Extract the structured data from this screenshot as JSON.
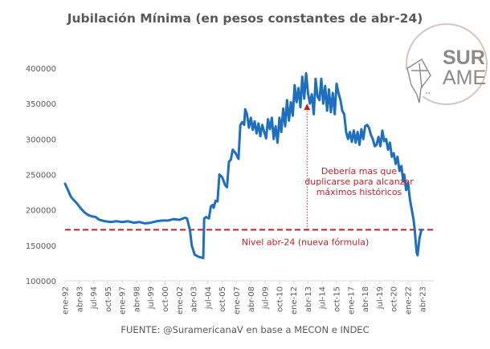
{
  "chart_data": {
    "type": "line",
    "title": "Jubilación Mínima (en pesos constantes de abr-24)",
    "xlabel": "",
    "ylabel": "",
    "ylim": [
      100000,
      400000
    ],
    "yticks": [
      100000,
      150000,
      200000,
      250000,
      300000,
      350000,
      400000
    ],
    "ytick_labels": [
      "100000",
      "150000",
      "200000",
      "250000",
      "300000",
      "350000",
      "400000"
    ],
    "xtick_labels": [
      "ene-92",
      "abr-93",
      "jul-94",
      "oct-95",
      "ene-97",
      "abr-98",
      "jul-99",
      "oct-00",
      "ene-02",
      "abr-03",
      "jul-04",
      "oct-05",
      "ene-07",
      "abr-08",
      "jul-09",
      "oct-10",
      "ene-12",
      "abr-13",
      "jul-14",
      "oct-15",
      "ene-17",
      "abr-18",
      "jul-19",
      "oct-20",
      "ene-22",
      "abr-23"
    ],
    "x_unit": "months since ene-92",
    "x_range": [
      0,
      387
    ],
    "grid": false,
    "legend": "none",
    "series": [
      {
        "name": "Jubilación Mínima",
        "color": "#1f6fc0",
        "points": [
          [
            0,
            237000
          ],
          [
            3,
            228000
          ],
          [
            6,
            219000
          ],
          [
            9,
            214000
          ],
          [
            12,
            210000
          ],
          [
            16,
            203000
          ],
          [
            20,
            197000
          ],
          [
            24,
            193000
          ],
          [
            28,
            191000
          ],
          [
            32,
            190000
          ],
          [
            36,
            186000
          ],
          [
            42,
            184000
          ],
          [
            48,
            183000
          ],
          [
            54,
            184000
          ],
          [
            60,
            183000
          ],
          [
            66,
            184000
          ],
          [
            72,
            182000
          ],
          [
            78,
            183000
          ],
          [
            84,
            181000
          ],
          [
            90,
            182000
          ],
          [
            96,
            184000
          ],
          [
            102,
            185000
          ],
          [
            108,
            185000
          ],
          [
            114,
            187000
          ],
          [
            120,
            186000
          ],
          [
            126,
            189000
          ],
          [
            128,
            188000
          ],
          [
            131,
            172000
          ],
          [
            133,
            150000
          ],
          [
            136,
            137000
          ],
          [
            140,
            134000
          ],
          [
            143,
            133000
          ],
          [
            145,
            132000
          ],
          [
            146,
            188000
          ],
          [
            148,
            190000
          ],
          [
            151,
            188000
          ],
          [
            153,
            205000
          ],
          [
            155,
            207000
          ],
          [
            156,
            203000
          ],
          [
            158,
            213000
          ],
          [
            160,
            212000
          ],
          [
            162,
            250000
          ],
          [
            165,
            246000
          ],
          [
            168,
            235000
          ],
          [
            170,
            232000
          ],
          [
            172,
            268000
          ],
          [
            174,
            271000
          ],
          [
            176,
            285000
          ],
          [
            179,
            280000
          ],
          [
            182,
            272000
          ],
          [
            184,
            320000
          ],
          [
            186,
            324000
          ],
          [
            188,
            320000
          ],
          [
            189,
            342000
          ],
          [
            191,
            335000
          ],
          [
            193,
            316000
          ],
          [
            195,
            330000
          ],
          [
            197,
            313000
          ],
          [
            199,
            325000
          ],
          [
            201,
            308000
          ],
          [
            203,
            322000
          ],
          [
            205,
            304000
          ],
          [
            207,
            320000
          ],
          [
            209,
            310000
          ],
          [
            211,
            301000
          ],
          [
            213,
            328000
          ],
          [
            215,
            314000
          ],
          [
            217,
            330000
          ],
          [
            219,
            300000
          ],
          [
            221,
            318000
          ],
          [
            223,
            295000
          ],
          [
            225,
            330000
          ],
          [
            227,
            310000
          ],
          [
            229,
            343000
          ],
          [
            231,
            318000
          ],
          [
            233,
            355000
          ],
          [
            235,
            326000
          ],
          [
            237,
            352000
          ],
          [
            239,
            333000
          ],
          [
            241,
            376000
          ],
          [
            243,
            352000
          ],
          [
            245,
            372000
          ],
          [
            247,
            345000
          ],
          [
            249,
            388000
          ],
          [
            251,
            357000
          ],
          [
            253,
            393000
          ],
          [
            255,
            365000
          ],
          [
            257,
            350000
          ],
          [
            259,
            363000
          ],
          [
            261,
            335000
          ],
          [
            263,
            385000
          ],
          [
            265,
            360000
          ],
          [
            267,
            355000
          ],
          [
            269,
            385000
          ],
          [
            271,
            350000
          ],
          [
            273,
            375000
          ],
          [
            275,
            340000
          ],
          [
            277,
            370000
          ],
          [
            279,
            338000
          ],
          [
            281,
            365000
          ],
          [
            283,
            335000
          ],
          [
            285,
            378000
          ],
          [
            287,
            365000
          ],
          [
            289,
            355000
          ],
          [
            291,
            340000
          ],
          [
            293,
            335000
          ],
          [
            295,
            310000
          ],
          [
            297,
            300000
          ],
          [
            299,
            310000
          ],
          [
            301,
            296000
          ],
          [
            303,
            312000
          ],
          [
            305,
            295000
          ],
          [
            307,
            310000
          ],
          [
            309,
            292000
          ],
          [
            311,
            314000
          ],
          [
            313,
            300000
          ],
          [
            315,
            318000
          ],
          [
            317,
            320000
          ],
          [
            319,
            316000
          ],
          [
            321,
            306000
          ],
          [
            323,
            300000
          ],
          [
            325,
            290000
          ],
          [
            327,
            292000
          ],
          [
            329,
            303000
          ],
          [
            331,
            290000
          ],
          [
            333,
            312000
          ],
          [
            335,
            297000
          ],
          [
            337,
            300000
          ],
          [
            339,
            285000
          ],
          [
            341,
            295000
          ],
          [
            343,
            275000
          ],
          [
            345,
            280000
          ],
          [
            347,
            265000
          ],
          [
            349,
            275000
          ],
          [
            351,
            255000
          ],
          [
            353,
            262000
          ],
          [
            355,
            240000
          ],
          [
            356,
            250000
          ],
          [
            358,
            228000
          ],
          [
            360,
            238000
          ],
          [
            362,
            215000
          ],
          [
            364,
            200000
          ],
          [
            366,
            184000
          ],
          [
            367,
            172000
          ],
          [
            368,
            155000
          ],
          [
            369,
            140000
          ],
          [
            370,
            136000
          ],
          [
            372,
            160000
          ],
          [
            374,
            172000
          ]
        ]
      }
    ],
    "reference_line": {
      "label": "Nivel abr-24 (nueva fórmula)",
      "value": 172000,
      "color": "#c0202a",
      "style": "dashed"
    },
    "annotation": {
      "lines": [
        "Debería mas que",
        "duplicarse para alcanzar",
        "máximos históricos"
      ],
      "color": "#c0202a",
      "arrow_x": 254,
      "arrow_from": 172000,
      "arrow_to": 350000
    }
  },
  "logo": {
    "top_text": "SUR",
    "bottom_text": "AME",
    "color": "#8a8a8a",
    "ring_color": "#d2c5c3"
  },
  "source": "FUENTE: @SuramericanaV en base a MECON e INDEC"
}
